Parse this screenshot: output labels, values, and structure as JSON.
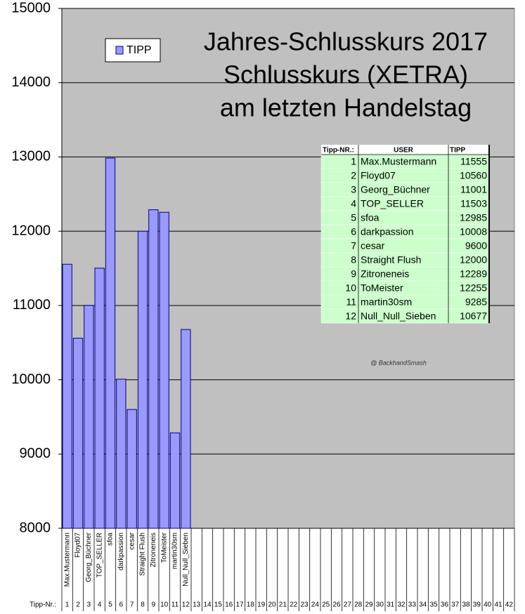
{
  "chart_data": {
    "type": "bar",
    "title": [
      "Jahres-Schlusskurs 2017",
      "Schlusskurs (XETRA)",
      "am letzten Handelstag"
    ],
    "categories": [
      "Max.Mustermann",
      "Floyd07",
      "Georg_Büchner",
      "TOP_SELLER",
      "sfoa",
      "darkpassion",
      "cesar",
      "Straight Flush",
      "Zitroneneis",
      "ToMeister",
      "martin30sm",
      "Null_Null_Sieben",
      null,
      null,
      null,
      null,
      null,
      null,
      null,
      null,
      null,
      null,
      null,
      null,
      null,
      null,
      null,
      null,
      null,
      null,
      null,
      null,
      null,
      null,
      null,
      null,
      null,
      null,
      null,
      null,
      null,
      null
    ],
    "category_numbers_label": "Tipp-Nr.:",
    "category_numbers": [
      1,
      2,
      3,
      4,
      5,
      6,
      7,
      8,
      9,
      10,
      11,
      12,
      13,
      14,
      15,
      16,
      17,
      18,
      19,
      20,
      21,
      22,
      23,
      24,
      25,
      26,
      27,
      28,
      29,
      30,
      31,
      32,
      33,
      34,
      35,
      36,
      37,
      38,
      39,
      40,
      41,
      42
    ],
    "series": [
      {
        "name": "TIPP",
        "color": "#9999ff",
        "values": [
          11555,
          10560,
          11001,
          11503,
          12985,
          10008,
          9600,
          12000,
          12289,
          12255,
          9285,
          10677,
          null,
          null,
          null,
          null,
          null,
          null,
          null,
          null,
          null,
          null,
          null,
          null,
          null,
          null,
          null,
          null,
          null,
          null,
          null,
          null,
          null,
          null,
          null,
          null,
          null,
          null,
          null,
          null,
          null,
          null
        ]
      }
    ],
    "ylim": [
      8000,
      15000
    ],
    "yticks": [
      8000,
      9000,
      10000,
      11000,
      12000,
      13000,
      14000,
      15000
    ],
    "grid": true,
    "legend": "top-left",
    "annotation": "@ BackhandSmash"
  },
  "table": {
    "header": [
      "Tipp-NR.:",
      "USER",
      "TIPP"
    ],
    "rows": [
      [
        1,
        "Max.Mustermann",
        11555
      ],
      [
        2,
        "Floyd07",
        10560
      ],
      [
        3,
        "Georg_Büchner",
        11001
      ],
      [
        4,
        "TOP_SELLER",
        11503
      ],
      [
        5,
        "sfoa",
        12985
      ],
      [
        6,
        "darkpassion",
        10008
      ],
      [
        7,
        "cesar",
        9600
      ],
      [
        8,
        "Straight Flush",
        12000
      ],
      [
        9,
        "Zitroneneis",
        12289
      ],
      [
        10,
        "ToMeister",
        12255
      ],
      [
        11,
        "martin30sm",
        9285
      ],
      [
        12,
        "Null_Null_Sieben",
        10677
      ]
    ]
  }
}
